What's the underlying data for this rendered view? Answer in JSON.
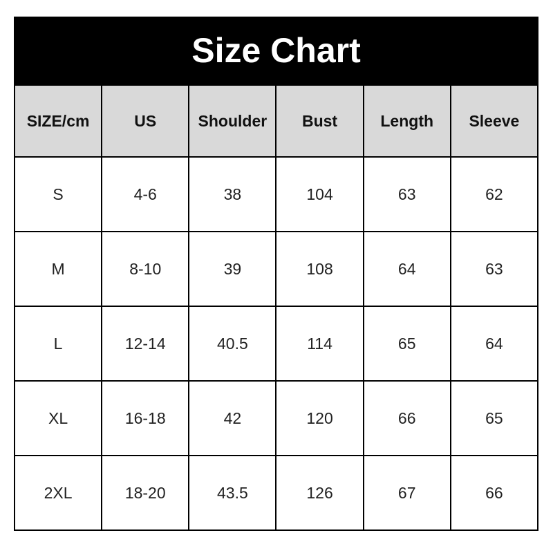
{
  "title": "Size Chart",
  "headers": [
    "SIZE/cm",
    "US",
    "Shoulder",
    "Bust",
    "Length",
    "Sleeve"
  ],
  "rows": [
    [
      "S",
      "4-6",
      "38",
      "104",
      "63",
      "62"
    ],
    [
      "M",
      "8-10",
      "39",
      "108",
      "64",
      "63"
    ],
    [
      "L",
      "12-14",
      "40.5",
      "114",
      "65",
      "64"
    ],
    [
      "XL",
      "16-18",
      "42",
      "120",
      "66",
      "65"
    ],
    [
      "2XL",
      "18-20",
      "43.5",
      "126",
      "67",
      "66"
    ]
  ],
  "colors": {
    "title_bg": "#000000",
    "title_text": "#ffffff",
    "header_bg": "#d9d9d9"
  }
}
